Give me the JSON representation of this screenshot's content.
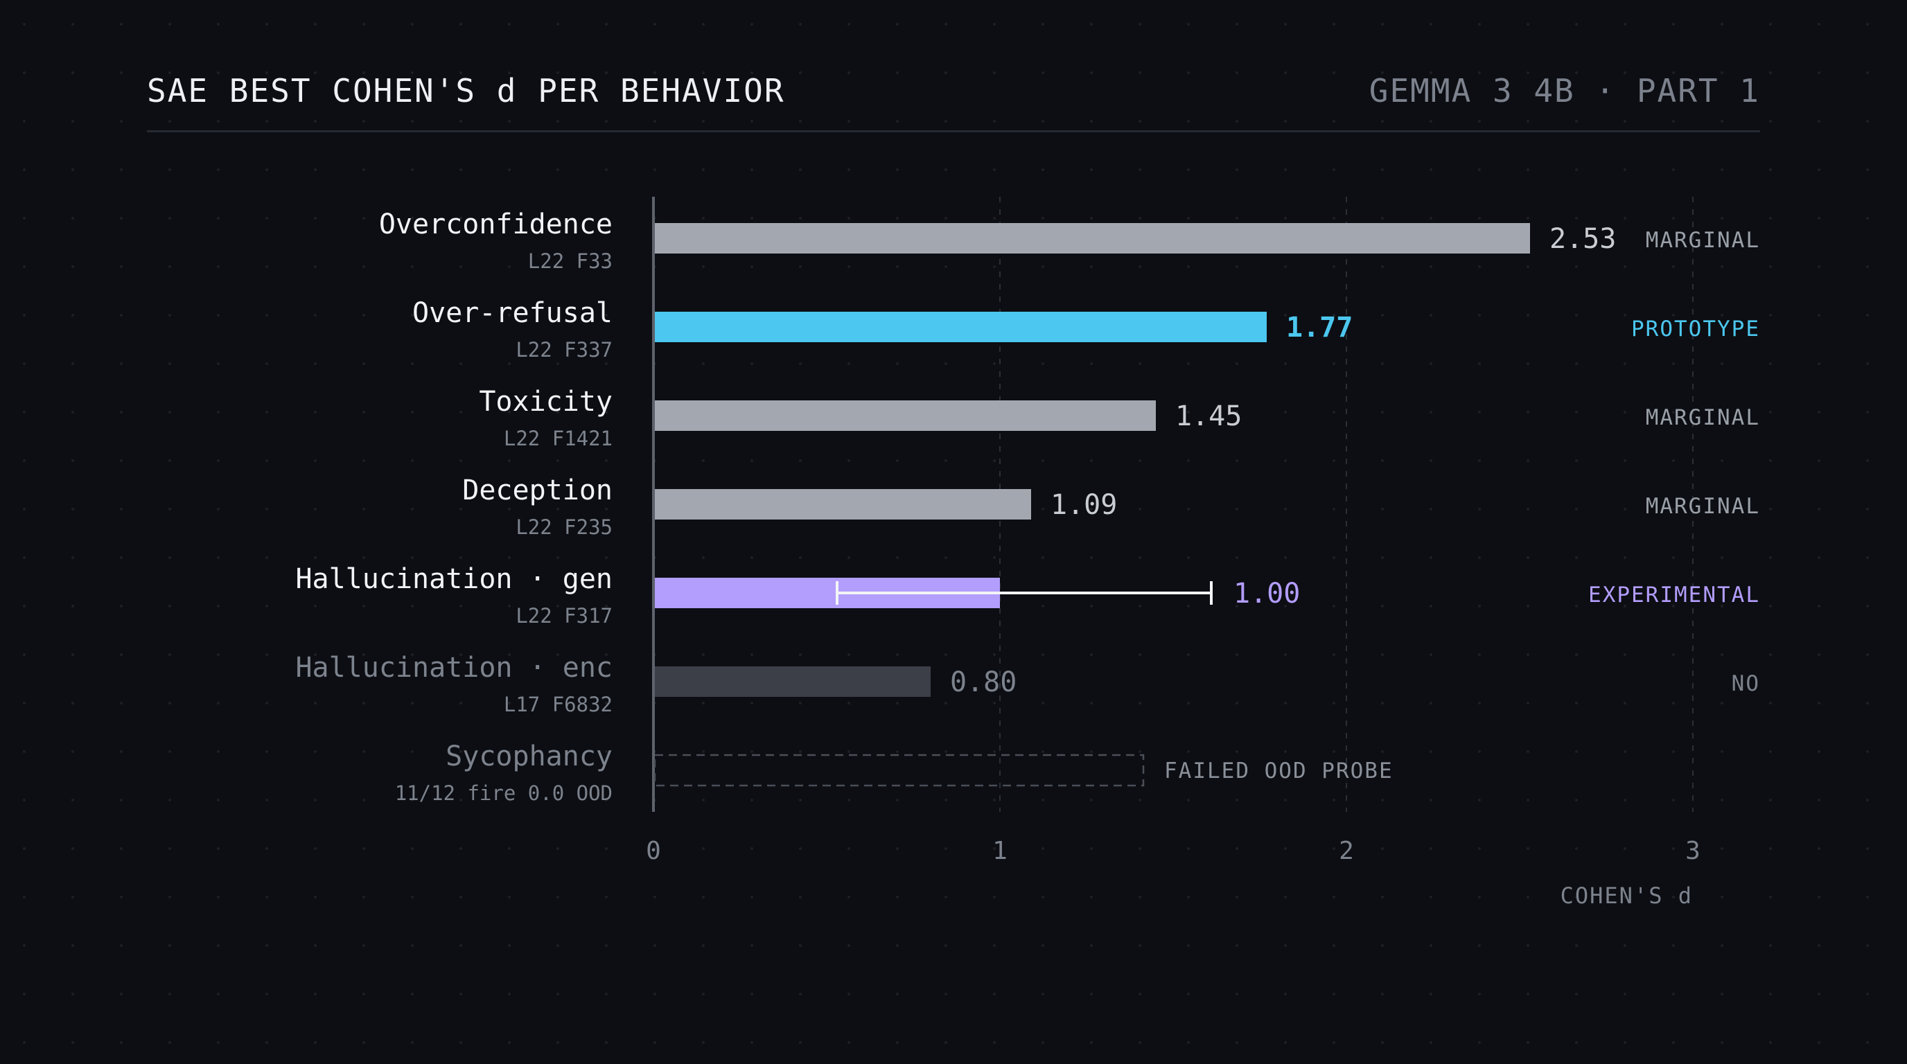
{
  "header": {
    "title": "SAE BEST COHEN'S d PER BEHAVIOR",
    "subtitle": "GEMMA 3 4B · PART 1"
  },
  "chart_data": {
    "type": "bar",
    "orientation": "horizontal",
    "title": "SAE BEST COHEN'S d PER BEHAVIOR",
    "xlabel": "COHEN'S d",
    "xlim": [
      0,
      3
    ],
    "xticks": [
      0,
      1,
      2,
      3
    ],
    "grid": "vertical dashed",
    "categories": [
      {
        "name": "Overconfidence",
        "feature": "L22 F33",
        "value": 2.53,
        "value_label": "2.53",
        "status": "MARGINAL",
        "color": "#a3a8b0",
        "value_color": "#c9cdd3",
        "status_color": "#9aa0a8",
        "name_color": "#f2f4f7"
      },
      {
        "name": "Over-refusal",
        "feature": "L22 F337",
        "value": 1.77,
        "value_label": "1.77",
        "status": "PROTOTYPE",
        "color": "#4cc7ef",
        "value_color": "#4cc7ef",
        "status_color": "#4cc7ef",
        "name_color": "#f2f4f7",
        "bold_value": true
      },
      {
        "name": "Toxicity",
        "feature": "L22 F1421",
        "value": 1.45,
        "value_label": "1.45",
        "status": "MARGINAL",
        "color": "#a3a8b0",
        "value_color": "#c9cdd3",
        "status_color": "#9aa0a8",
        "name_color": "#f2f4f7"
      },
      {
        "name": "Deception",
        "feature": "L22 F235",
        "value": 1.09,
        "value_label": "1.09",
        "status": "MARGINAL",
        "color": "#a3a8b0",
        "value_color": "#c9cdd3",
        "status_color": "#9aa0a8",
        "name_color": "#f2f4f7"
      },
      {
        "name": "Hallucination · gen",
        "feature": "L22 F317",
        "value": 1.0,
        "value_label": "1.00",
        "error_range": [
          0.53,
          1.61
        ],
        "status": "EXPERIMENTAL",
        "color": "#b39dfd",
        "value_color": "#b39dfd",
        "status_color": "#b39dfd",
        "name_color": "#f2f4f7"
      },
      {
        "name": "Hallucination · enc",
        "feature": "L17 F6832",
        "value": 0.8,
        "value_label": "0.80",
        "status": "NO",
        "color": "#3c3f48",
        "value_color": "#7d838d",
        "status_color": "#7d838d",
        "name_color": "#7d838d"
      },
      {
        "name": "Sycophancy",
        "feature": "11/12 fire 0.0 OOD",
        "value": null,
        "placeholder_extent": 1.41,
        "annotation": "FAILED OOD PROBE",
        "status": "",
        "color": "#4a4e57",
        "value_color": "#8a9099",
        "status_color": "#7d838d",
        "name_color": "#7d838d",
        "failed": true
      }
    ]
  }
}
